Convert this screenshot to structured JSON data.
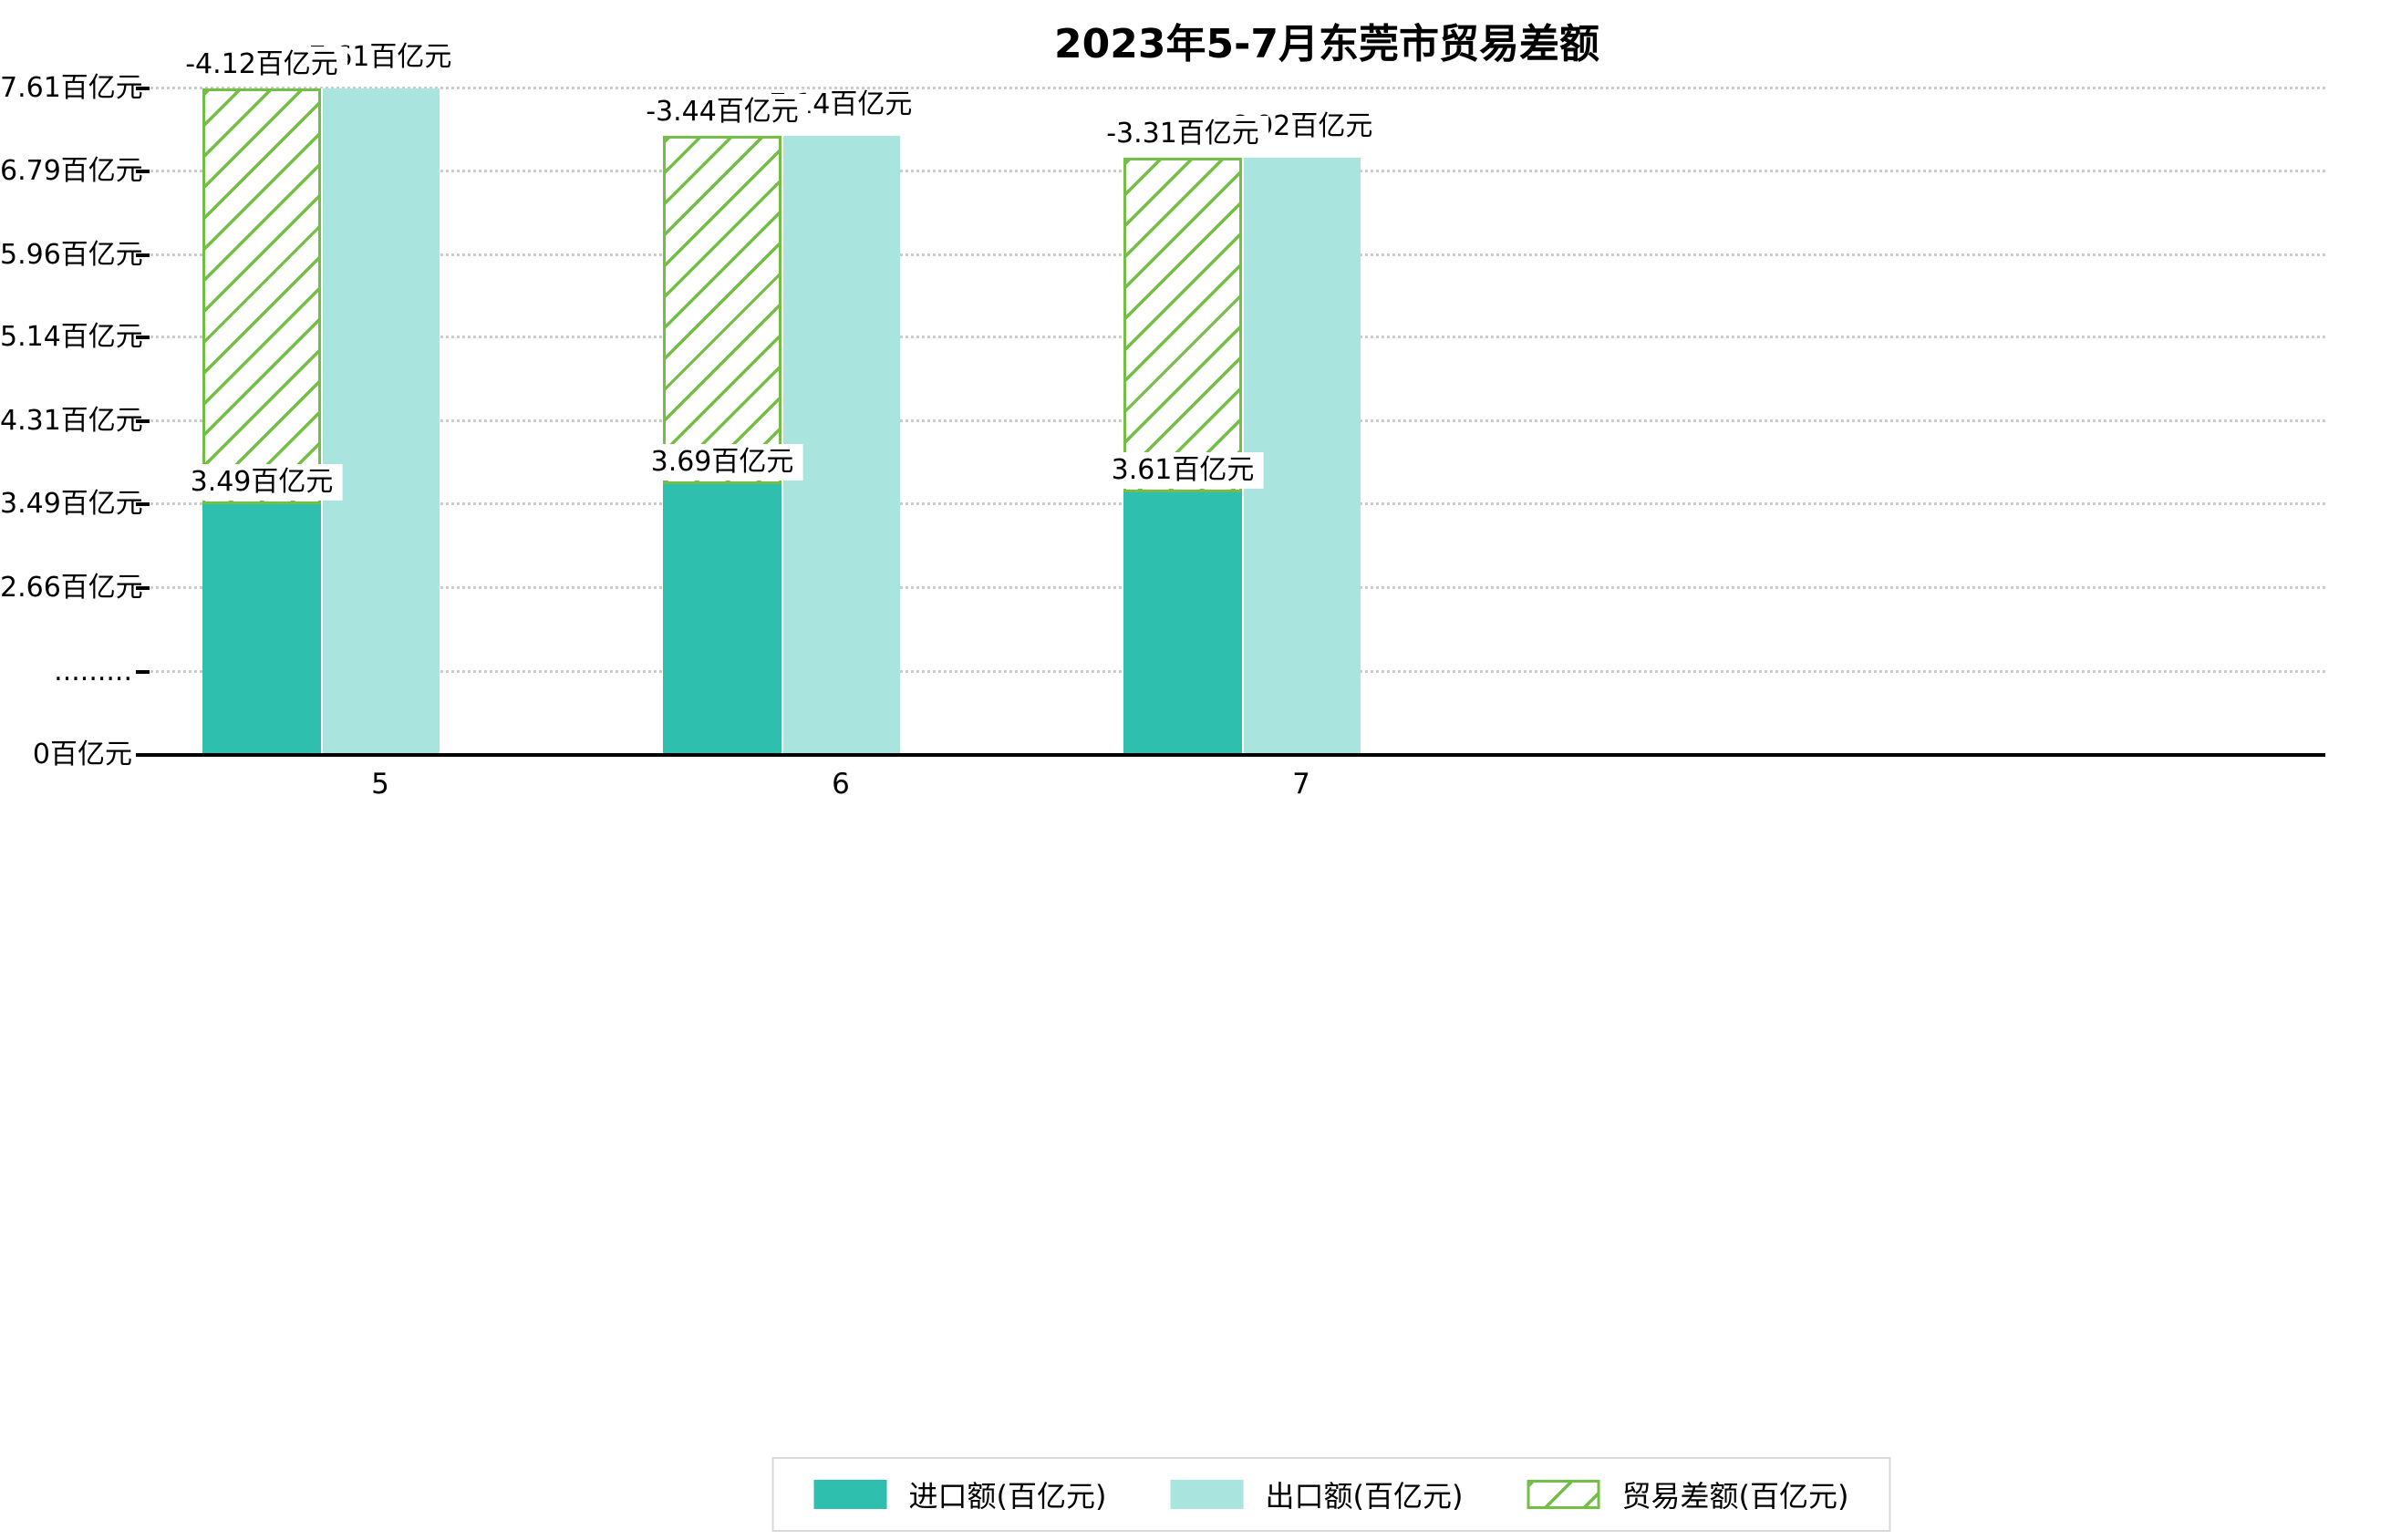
{
  "title": "2023年5-7月东莞市贸易差额",
  "colors": {
    "import_fill": "#2fbfae",
    "export_fill": "#a9e5de",
    "deficit_hatch": "#73bf45",
    "grid_line": "#cccccc",
    "axis_line": "#000000",
    "label_bg": "#ffffff",
    "legend_border": "#d9d9d9",
    "text": "#000000"
  },
  "y_axis": {
    "ticks": [
      {
        "label": "7.61百亿元",
        "value": 7.61
      },
      {
        "label": "6.79百亿元",
        "value": 6.79
      },
      {
        "label": "5.96百亿元",
        "value": 5.96
      },
      {
        "label": "5.14百亿元",
        "value": 5.14
      },
      {
        "label": "4.31百亿元",
        "value": 4.31
      },
      {
        "label": "3.49百亿元",
        "value": 3.49
      },
      {
        "label": "2.66百亿元",
        "value": 2.66
      },
      {
        "label": ".........",
        "value": null
      },
      {
        "label": "0百亿元",
        "value": 0
      }
    ]
  },
  "x_axis": {
    "tick_labels": [
      "5",
      "6",
      "7"
    ]
  },
  "legend": {
    "items": [
      {
        "label": "进口额(百亿元)",
        "swatch": "import"
      },
      {
        "label": "出口额(百亿元)",
        "swatch": "export"
      },
      {
        "label": "贸易差额(百亿元)",
        "swatch": "deficit"
      }
    ]
  },
  "chart_data": {
    "type": "bar",
    "title": "2023年5-7月东莞市贸易差额",
    "categories": [
      "5",
      "6",
      "7"
    ],
    "unit": "百亿元",
    "series": [
      {
        "name": "进口额(百亿元)",
        "role": "import",
        "values": [
          3.49,
          3.69,
          3.61
        ],
        "data_labels": [
          "3.49百亿元",
          "3.69百亿元",
          "3.61百亿元"
        ]
      },
      {
        "name": "出口额(百亿元)",
        "role": "export",
        "values": [
          7.61,
          7.14,
          6.92
        ],
        "data_labels": [
          "7.61百亿元",
          "7.14百亿元",
          "6.92百亿元"
        ]
      },
      {
        "name": "贸易差额(百亿元)",
        "role": "deficit",
        "values": [
          -4.12,
          -3.44,
          -3.31
        ],
        "data_labels": [
          "-4.12百亿元",
          "-3.44百亿元",
          "-3.31百亿元"
        ]
      }
    ],
    "y_ticks": [
      0,
      2.66,
      3.49,
      4.31,
      5.14,
      5.96,
      6.79,
      7.61
    ],
    "y_axis_break": true,
    "ylim": [
      0,
      7.61
    ],
    "grid": true,
    "legend_position": "bottom",
    "notes": "贸易差额 hatched bars are stacked on top of 进口额 bars, spanning from the import value up to the export value; y axis is broken between 0 and 2.66"
  }
}
